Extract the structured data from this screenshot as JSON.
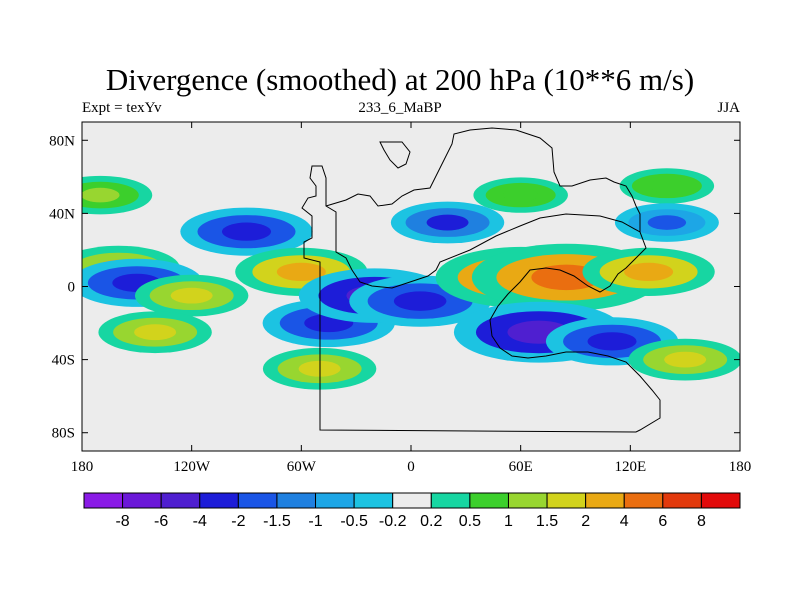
{
  "title": "Divergence (smoothed) at 200 hPa (10**6 m/s)",
  "left_string": "Expt = texYv",
  "center_string": "233_6_MaBP",
  "right_string": "JJA",
  "chart_data": {
    "type": "heatmap",
    "title": "Divergence (smoothed) at 200 hPa (10**6 m/s)",
    "xlabel": "",
    "ylabel": "",
    "xlim": [
      -180,
      180
    ],
    "ylim": [
      -90,
      90
    ],
    "x_ticks": [
      {
        "value": -180,
        "label": "180"
      },
      {
        "value": -120,
        "label": "120W"
      },
      {
        "value": -60,
        "label": "60W"
      },
      {
        "value": 0,
        "label": "0"
      },
      {
        "value": 60,
        "label": "60E"
      },
      {
        "value": 120,
        "label": "120E"
      },
      {
        "value": 180,
        "label": "180"
      }
    ],
    "y_ticks": [
      {
        "value": 80,
        "label": "80N"
      },
      {
        "value": 40,
        "label": "40N"
      },
      {
        "value": 0,
        "label": "0"
      },
      {
        "value": -40,
        "label": "40S"
      },
      {
        "value": -80,
        "label": "80S"
      }
    ],
    "colorbar": {
      "levels": [
        "-8",
        "-6",
        "-4",
        "-2",
        "-1.5",
        "-1",
        "-0.5",
        "-0.2",
        "0.2",
        "0.5",
        "1",
        "1.5",
        "2",
        "4",
        "6",
        "8"
      ],
      "colors": [
        "#8a1be6",
        "#6b18d8",
        "#4f1fd0",
        "#1d1dd8",
        "#1a55e6",
        "#1f80e0",
        "#1da6e6",
        "#1cc3e2",
        "#ececec",
        "#17d6a2",
        "#3ccf2c",
        "#98d630",
        "#d2d31c",
        "#e9a914",
        "#ea6e10",
        "#e2390c",
        "#e20a0a"
      ]
    },
    "fields": [
      {
        "lon": -160,
        "lat": 10,
        "value": 2.5
      },
      {
        "lon": -150,
        "lat": 2,
        "value": -3
      },
      {
        "lon": -120,
        "lat": -5,
        "value": 2
      },
      {
        "lon": -90,
        "lat": 30,
        "value": -3
      },
      {
        "lon": -60,
        "lat": 8,
        "value": 3
      },
      {
        "lon": -45,
        "lat": -20,
        "value": -3
      },
      {
        "lon": -20,
        "lat": -5,
        "value": -4
      },
      {
        "lon": 5,
        "lat": -8,
        "value": -3.5
      },
      {
        "lon": 60,
        "lat": 5,
        "value": 5
      },
      {
        "lon": 85,
        "lat": 5,
        "value": 6
      },
      {
        "lon": 130,
        "lat": 8,
        "value": 3
      },
      {
        "lon": 70,
        "lat": -25,
        "value": -5
      },
      {
        "lon": 110,
        "lat": -30,
        "value": -3
      },
      {
        "lon": -140,
        "lat": -25,
        "value": 2
      },
      {
        "lon": -50,
        "lat": -45,
        "value": 2
      },
      {
        "lon": 150,
        "lat": -40,
        "value": 2
      },
      {
        "lon": -170,
        "lat": 50,
        "value": 1.5
      },
      {
        "lon": 60,
        "lat": 50,
        "value": 1
      },
      {
        "lon": 140,
        "lat": 55,
        "value": 1
      },
      {
        "lon": 20,
        "lat": 35,
        "value": -2
      },
      {
        "lon": 140,
        "lat": 35,
        "value": -1.5
      }
    ],
    "grid": false,
    "legend": "bottom"
  }
}
